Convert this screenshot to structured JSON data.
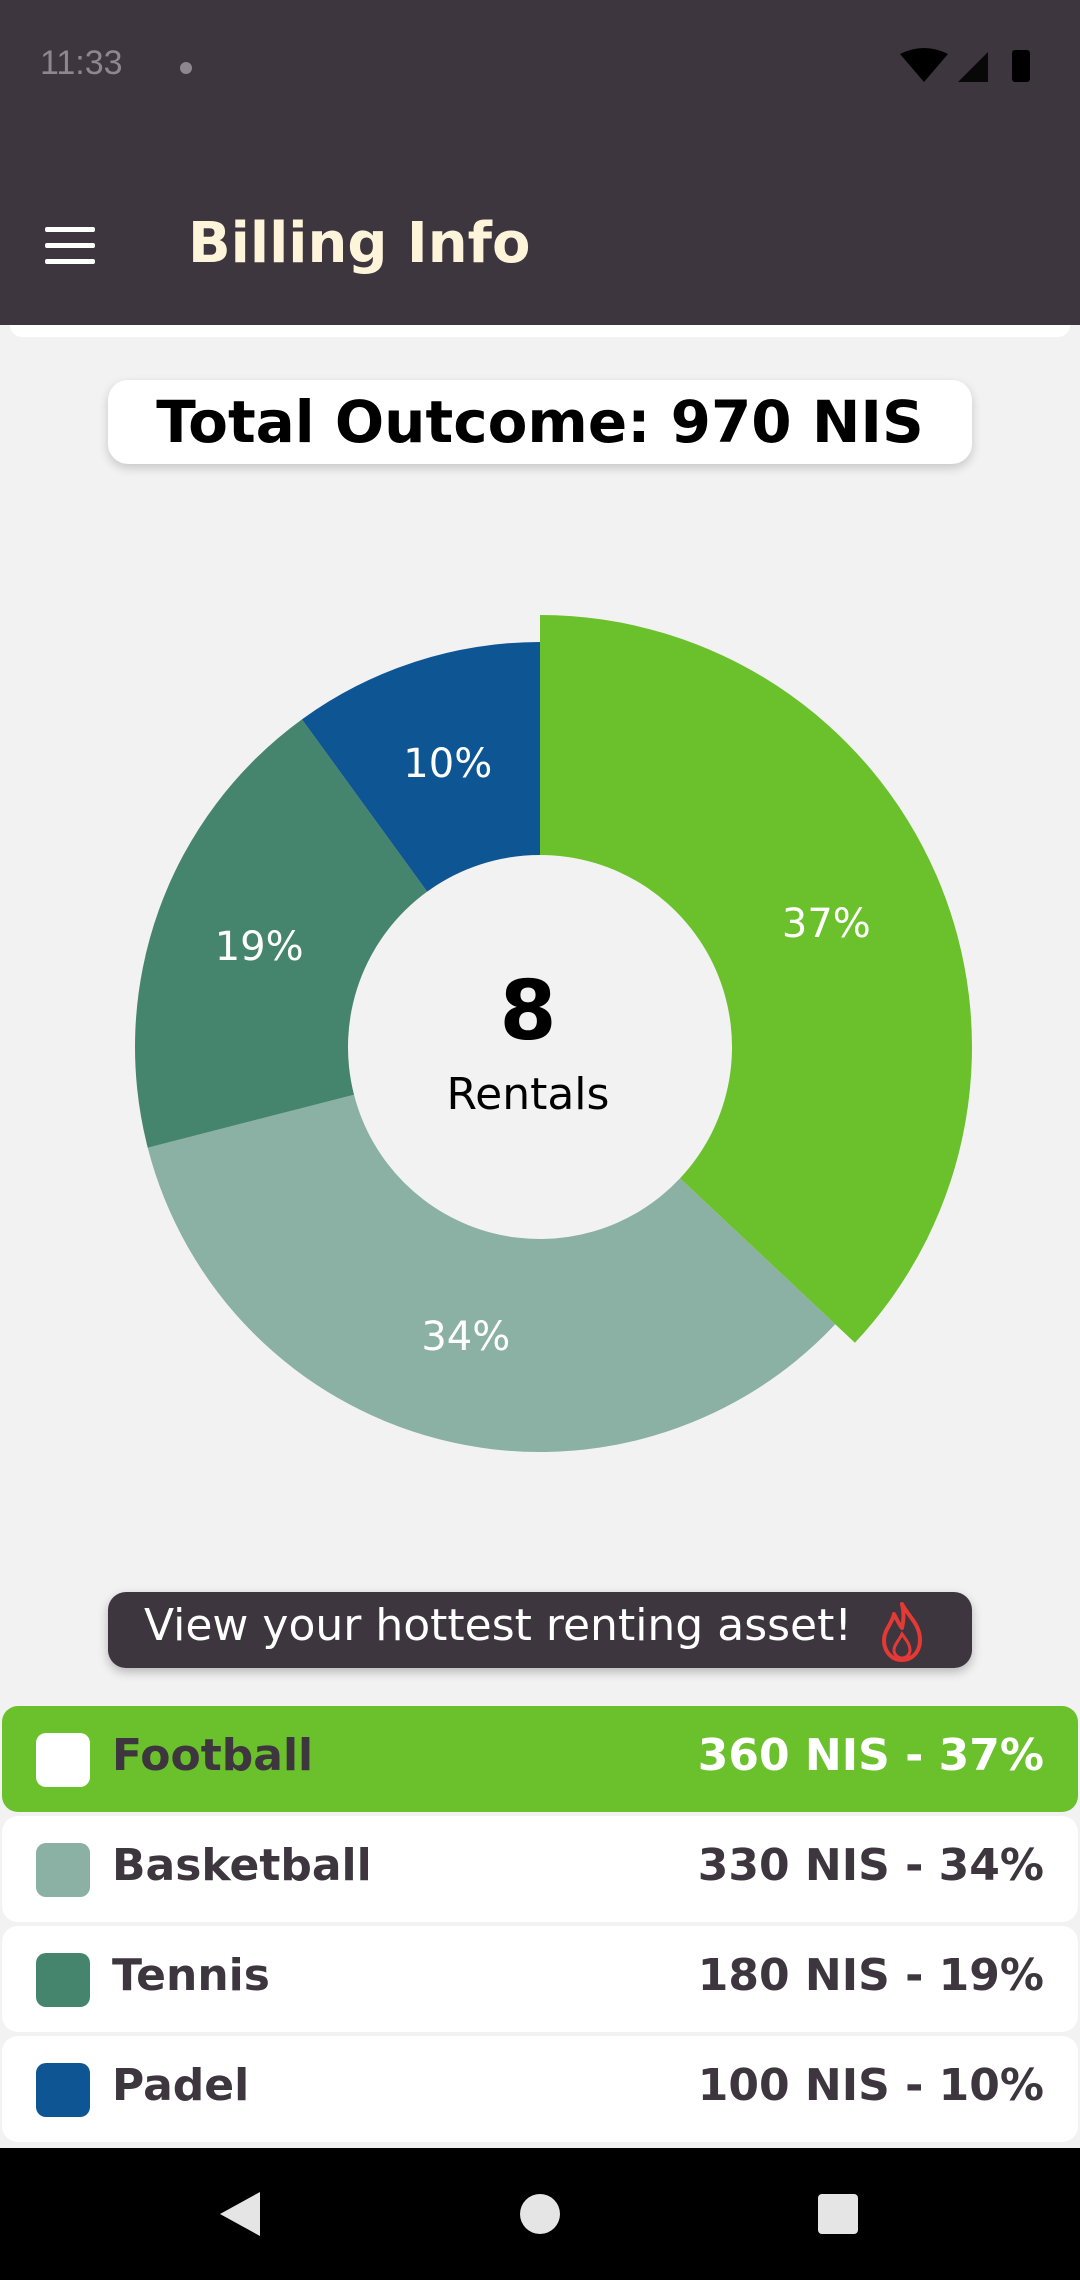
{
  "status_bar": {
    "time": "11:33",
    "icons": [
      "wifi-icon",
      "signal-icon",
      "battery-icon"
    ]
  },
  "appbar": {
    "title": "Billing Info",
    "menu_icon": "hamburger-menu-icon"
  },
  "total": {
    "text": "Total Outcome: 970 NIS"
  },
  "chart_data": {
    "type": "pie",
    "variant": "donut",
    "center_value": "8",
    "center_label": "Rentals",
    "slices": [
      {
        "category": "Football",
        "value": 360,
        "percent": 37,
        "label": "37%",
        "color": "#6bc12b",
        "highlighted": true
      },
      {
        "category": "Basketball",
        "value": 330,
        "percent": 34,
        "label": "34%",
        "color": "#8ab1a3"
      },
      {
        "category": "Tennis",
        "value": 180,
        "percent": 19,
        "label": "19%",
        "color": "#46856d"
      },
      {
        "category": "Padel",
        "value": 100,
        "percent": 10,
        "label": "10%",
        "color": "#0e5594"
      }
    ]
  },
  "hot_banner": {
    "text": "View your hottest renting asset!",
    "icon": "fire-icon",
    "icon_color": "#e53935"
  },
  "legend_rows": [
    {
      "name": "Football",
      "value": "360 NIS - 37%",
      "color": "#ffffff",
      "active": true
    },
    {
      "name": "Basketball",
      "value": "330 NIS - 34%",
      "color": "#8ab1a3",
      "active": false
    },
    {
      "name": "Tennis",
      "value": "180 NIS - 19%",
      "color": "#46856d",
      "active": false
    },
    {
      "name": "Padel",
      "value": "100 NIS - 10%",
      "color": "#0e5594",
      "active": false
    }
  ],
  "nav_bar": {
    "icons": [
      "back-icon",
      "home-icon",
      "recents-icon"
    ]
  }
}
